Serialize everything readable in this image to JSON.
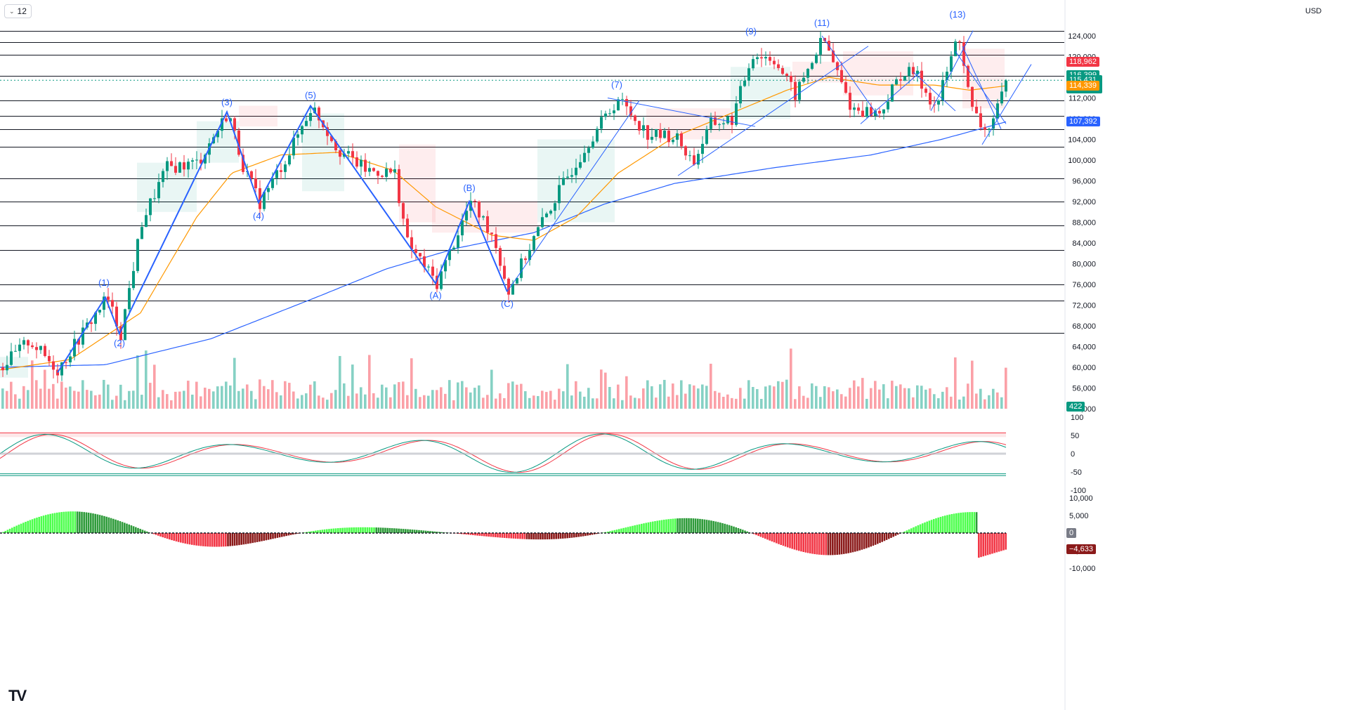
{
  "toolbar": {
    "interval": "12",
    "currency": "USD"
  },
  "price_scale": {
    "ticks": [
      "124,000",
      "120,000",
      "116,000",
      "112,000",
      "108,000",
      "104,000",
      "100,000",
      "96,000",
      "92,000",
      "88,000",
      "84,000",
      "80,000",
      "76,000",
      "72,000",
      "68,000",
      "64,000",
      "60,000",
      "56,000",
      "52,000"
    ],
    "labels": {
      "red": "118,962",
      "green": "116,399",
      "last_price": "115,431",
      "countdown": "13:37:43",
      "orange": "114,339",
      "blue": "107,392",
      "volume": "422"
    }
  },
  "oscillator_scale": {
    "ticks": [
      "100",
      "50",
      "0",
      "-50",
      "-100"
    ]
  },
  "momentum_scale": {
    "ticks": [
      "10,000",
      "5,000",
      "0",
      "-5,000",
      "-10,000"
    ],
    "zero_label": "0",
    "value_label": "−4,633"
  },
  "wave_labels": [
    "(1)",
    "(2)",
    "(3)",
    "(4)",
    "(5)",
    "(A)",
    "(B)",
    "(C)",
    "(7)",
    "(9)",
    "(11)",
    "(13)"
  ],
  "colors": {
    "up": "#089981",
    "down": "#f23645",
    "ma_short": "#ff9800",
    "ma_long": "#2962ff",
    "wave": "#2962ff",
    "hline": "#131722"
  },
  "chart_data": {
    "type": "candlestick",
    "symbol_interval": "12",
    "currency": "USD",
    "ylim": [
      52000,
      126000
    ],
    "horizontal_levels": [
      125000,
      122800,
      120300,
      116300,
      111500,
      108500,
      105900,
      102600,
      96500,
      92000,
      87400,
      82600,
      76000,
      72900,
      66600
    ],
    "waves": [
      {
        "label": "(1)",
        "price": 73500
      },
      {
        "label": "(2)",
        "price": 66500
      },
      {
        "label": "(3)",
        "price": 109300
      },
      {
        "label": "(4)",
        "price": 91800
      },
      {
        "label": "(5)",
        "price": 110500
      },
      {
        "label": "(A)",
        "price": 76200
      },
      {
        "label": "(B)",
        "price": 92000
      },
      {
        "label": "(C)",
        "price": 74600
      },
      {
        "label": "(7)",
        "price": 111900
      },
      {
        "label": "(9)",
        "price": 123200
      },
      {
        "label": "(11)",
        "price": 123600
      },
      {
        "label": "(13)",
        "price": 124500
      }
    ],
    "close_path": [
      [
        0,
        60000
      ],
      [
        40,
        65200
      ],
      [
        80,
        59500
      ],
      [
        150,
        73500
      ],
      [
        170,
        66500
      ],
      [
        200,
        88000
      ],
      [
        235,
        98500
      ],
      [
        280,
        99500
      ],
      [
        323,
        109300
      ],
      [
        345,
        98500
      ],
      [
        368,
        91800
      ],
      [
        410,
        101500
      ],
      [
        442,
        110500
      ],
      [
        480,
        102000
      ],
      [
        520,
        98000
      ],
      [
        560,
        97500
      ],
      [
        578,
        84000
      ],
      [
        620,
        76200
      ],
      [
        668,
        92000
      ],
      [
        700,
        85500
      ],
      [
        722,
        74600
      ],
      [
        760,
        85500
      ],
      [
        800,
        95500
      ],
      [
        840,
        104500
      ],
      [
        878,
        111900
      ],
      [
        920,
        105000
      ],
      [
        960,
        104500
      ],
      [
        985,
        99500
      ],
      [
        1010,
        107000
      ],
      [
        1040,
        107800
      ],
      [
        1069,
        120500
      ],
      [
        1100,
        119500
      ],
      [
        1130,
        112500
      ],
      [
        1170,
        123600
      ],
      [
        1210,
        110000
      ],
      [
        1250,
        109000
      ],
      [
        1280,
        116500
      ],
      [
        1300,
        117000
      ],
      [
        1330,
        110000
      ],
      [
        1363,
        124500
      ],
      [
        1380,
        110000
      ],
      [
        1400,
        105500
      ],
      [
        1415,
        108500
      ],
      [
        1432,
        115431
      ]
    ],
    "ma_short": [
      [
        0,
        59500
      ],
      [
        100,
        61500
      ],
      [
        200,
        70500
      ],
      [
        280,
        89000
      ],
      [
        330,
        97500
      ],
      [
        400,
        101000
      ],
      [
        480,
        101500
      ],
      [
        560,
        98000
      ],
      [
        620,
        91000
      ],
      [
        700,
        85500
      ],
      [
        760,
        84500
      ],
      [
        820,
        89000
      ],
      [
        880,
        97500
      ],
      [
        960,
        104500
      ],
      [
        1040,
        109000
      ],
      [
        1120,
        113500
      ],
      [
        1180,
        116000
      ],
      [
        1250,
        114500
      ],
      [
        1330,
        114500
      ],
      [
        1380,
        113500
      ],
      [
        1432,
        114339
      ]
    ],
    "ma_long": [
      [
        0,
        60000
      ],
      [
        150,
        60500
      ],
      [
        300,
        65500
      ],
      [
        450,
        73500
      ],
      [
        550,
        79000
      ],
      [
        650,
        83000
      ],
      [
        760,
        86000
      ],
      [
        860,
        91500
      ],
      [
        960,
        95500
      ],
      [
        1100,
        98500
      ],
      [
        1240,
        101000
      ],
      [
        1340,
        104000
      ],
      [
        1432,
        107392
      ]
    ],
    "volume": {
      "last": 422
    },
    "oscillator": {
      "upper_band": 55,
      "lower_band": -55
    },
    "momentum": {
      "last": -4633,
      "ylim": [
        -10000,
        10000
      ]
    },
    "price_labels": {
      "red": 118962,
      "green": 116399,
      "last": 115431,
      "orange": 114339,
      "blue": 107392
    }
  }
}
